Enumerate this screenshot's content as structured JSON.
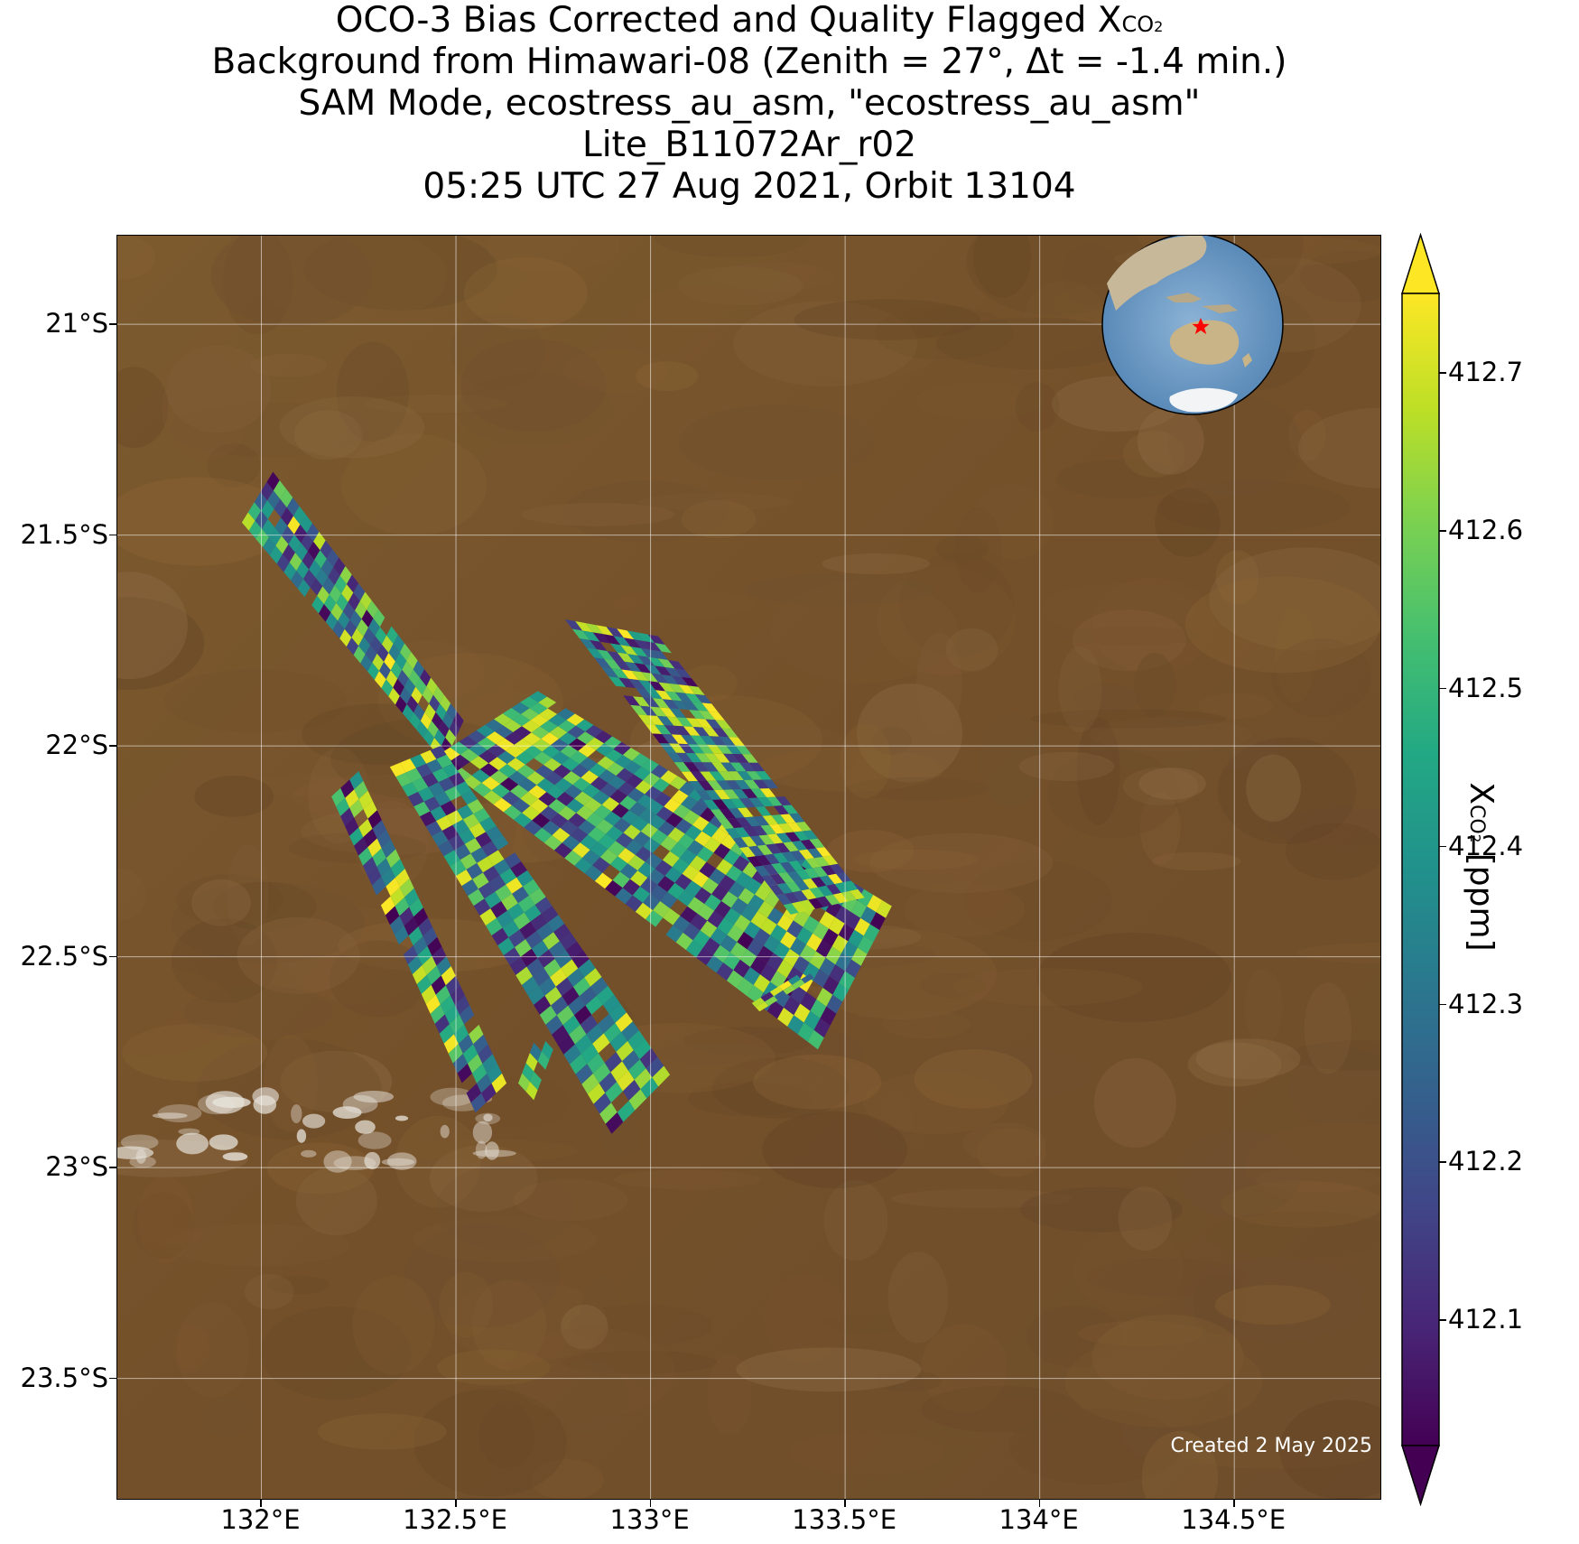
{
  "title": {
    "line1_prefix": "OCO-3 Bias Corrected and Quality Flagged X",
    "line1_sub": "CO",
    "line1_subsub": "2",
    "line2": "Background from Himawari-08 (Zenith = 27°, Δt = -1.4 min.)",
    "line3": "SAM Mode, ecostress_au_asm, \"ecostress_au_asm\"",
    "line4": "Lite_B11072Ar_r02",
    "line5": "05:25 UTC 27 Aug 2021, Orbit 13104"
  },
  "map": {
    "lon_range": [
      131.63,
      134.88
    ],
    "lat_range": [
      -23.79,
      -20.79
    ],
    "lat_ticks": [
      {
        "value": -21.0,
        "label": "21°S"
      },
      {
        "value": -21.5,
        "label": "21.5°S"
      },
      {
        "value": -22.0,
        "label": "22°S"
      },
      {
        "value": -22.5,
        "label": "22.5°S"
      },
      {
        "value": -23.0,
        "label": "23°S"
      },
      {
        "value": -23.5,
        "label": "23.5°S"
      }
    ],
    "lon_ticks": [
      {
        "value": 132.0,
        "label": "132°E"
      },
      {
        "value": 132.5,
        "label": "132.5°E"
      },
      {
        "value": 133.0,
        "label": "133°E"
      },
      {
        "value": 133.5,
        "label": "133.5°E"
      },
      {
        "value": 134.0,
        "label": "134°E"
      },
      {
        "value": 134.5,
        "label": "134.5°E"
      }
    ],
    "grid": true,
    "background_color": "#7a5528",
    "footnote": "Created 2 May 2025",
    "inset": {
      "type": "globe",
      "marker": "red-star",
      "marker_color": "#ff0000"
    }
  },
  "colorbar": {
    "colormap": "viridis",
    "range": [
      412.02,
      412.75
    ],
    "extend": "both",
    "ticks": [
      {
        "value": 412.1,
        "label": "412.1"
      },
      {
        "value": 412.2,
        "label": "412.2"
      },
      {
        "value": 412.3,
        "label": "412.3"
      },
      {
        "value": 412.4,
        "label": "412.4"
      },
      {
        "value": 412.5,
        "label": "412.5"
      },
      {
        "value": 412.6,
        "label": "412.6"
      },
      {
        "value": 412.7,
        "label": "412.7"
      }
    ],
    "label_prefix": "X",
    "label_sub": "CO",
    "label_subsub": "2",
    "label_suffix": " [ppm]"
  },
  "chart_data": {
    "type": "heatmap",
    "variable": "XCO2",
    "units": "ppm",
    "value_range": [
      412.02,
      412.75
    ],
    "swaths": [
      {
        "corners": [
          [
            131.95,
            -21.47
          ],
          [
            132.03,
            -21.35
          ],
          [
            132.52,
            -21.94
          ],
          [
            132.47,
            -22.04
          ]
        ]
      },
      {
        "corners": [
          [
            132.44,
            -22.03
          ],
          [
            132.71,
            -21.87
          ],
          [
            133.62,
            -22.38
          ],
          [
            133.43,
            -22.72
          ]
        ]
      },
      {
        "corners": [
          [
            132.78,
            -21.7
          ],
          [
            133.02,
            -21.74
          ],
          [
            133.55,
            -22.36
          ],
          [
            133.36,
            -22.4
          ]
        ]
      },
      {
        "corners": [
          [
            132.33,
            -22.05
          ],
          [
            132.46,
            -22.0
          ],
          [
            133.05,
            -22.78
          ],
          [
            132.9,
            -22.92
          ]
        ]
      },
      {
        "corners": [
          [
            132.18,
            -22.12
          ],
          [
            132.25,
            -22.06
          ],
          [
            132.63,
            -22.8
          ],
          [
            132.55,
            -22.87
          ]
        ]
      },
      {
        "corners": [
          [
            132.66,
            -22.8
          ],
          [
            132.71,
            -22.68
          ],
          [
            132.75,
            -22.72
          ],
          [
            132.7,
            -22.84
          ]
        ]
      },
      {
        "corners": [
          [
            133.26,
            -22.61
          ],
          [
            133.4,
            -22.53
          ],
          [
            133.42,
            -22.55
          ],
          [
            133.28,
            -22.63
          ]
        ]
      }
    ]
  }
}
